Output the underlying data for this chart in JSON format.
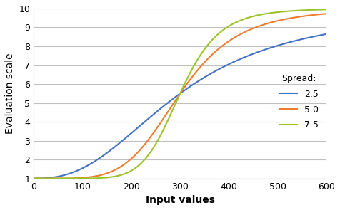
{
  "title": "",
  "xlabel": "Input values",
  "ylabel": "Evaluation scale",
  "xlim": [
    0,
    600
  ],
  "ylim": [
    1,
    10
  ],
  "xticks": [
    0,
    100,
    200,
    300,
    400,
    500,
    600
  ],
  "yticks": [
    1,
    2,
    3,
    4,
    5,
    6,
    7,
    8,
    9,
    10
  ],
  "curves": [
    {
      "spread": 2.5,
      "color": "#4472C4",
      "label": "2.5",
      "midpoint": 300
    },
    {
      "spread": 5.0,
      "color": "#ED7D31",
      "label": "5.0",
      "midpoint": 300
    },
    {
      "spread": 7.5,
      "color": "#9DC32B",
      "label": "7.5",
      "midpoint": 300
    }
  ],
  "legend_title": "Spread:",
  "background_color": "#ffffff",
  "grid_color": "#C0C0C0"
}
